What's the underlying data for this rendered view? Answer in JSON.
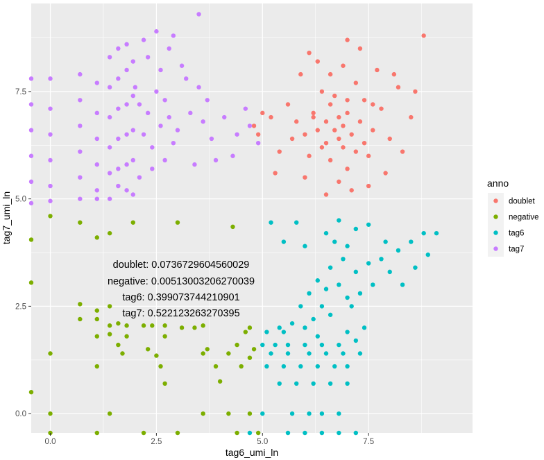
{
  "chart_data": {
    "type": "scatter",
    "title": "",
    "xlabel": "tag6_umi_ln",
    "ylabel": "tag7_umi_ln",
    "xlim": [
      -0.45,
      9.95
    ],
    "ylim": [
      -0.45,
      9.55
    ],
    "x_ticks": [
      0.0,
      2.5,
      5.0,
      7.5
    ],
    "x_tick_labels": [
      "0.0",
      "2.5",
      "5.0",
      "7.5"
    ],
    "y_ticks": [
      0.0,
      2.5,
      5.0,
      7.5
    ],
    "y_tick_labels": [
      "0.0",
      "2.5",
      "5.0",
      "7.5"
    ],
    "legend": {
      "title": "anno",
      "position": "right",
      "entries": [
        "doublet",
        "negative",
        "tag6",
        "tag7"
      ]
    },
    "annotation_lines": [
      "doublet: 0.0736729604560029",
      "negative: 0.00513003206270039",
      "tag6: 0.399073744210901",
      "tag7: 0.522123263270395"
    ],
    "series": [
      {
        "name": "doublet",
        "color": "#F8766D",
        "points": [
          [
            6.3,
            6.6
          ],
          [
            6.8,
            6.9
          ],
          [
            7.1,
            6.5
          ],
          [
            6.6,
            7.2
          ],
          [
            7.0,
            7.0
          ],
          [
            6.5,
            6.3
          ],
          [
            7.3,
            6.8
          ],
          [
            6.9,
            6.2
          ],
          [
            6.2,
            7.0
          ],
          [
            7.4,
            7.3
          ],
          [
            6.7,
            6.6
          ],
          [
            6.0,
            6.5
          ],
          [
            7.6,
            6.6
          ],
          [
            6.4,
            7.5
          ],
          [
            7.2,
            7.7
          ],
          [
            5.8,
            6.8
          ],
          [
            7.8,
            7.1
          ],
          [
            6.6,
            5.9
          ],
          [
            7.0,
            5.7
          ],
          [
            6.1,
            6.0
          ],
          [
            8.0,
            6.4
          ],
          [
            5.6,
            7.2
          ],
          [
            7.5,
            6.0
          ],
          [
            6.9,
            8.1
          ],
          [
            6.3,
            8.2
          ],
          [
            7.3,
            8.5
          ],
          [
            8.2,
            7.6
          ],
          [
            5.4,
            6.1
          ],
          [
            8.5,
            6.9
          ],
          [
            6.8,
            5.4
          ],
          [
            7.1,
            5.2
          ],
          [
            6.5,
            5.1
          ],
          [
            5.2,
            6.9
          ],
          [
            4.9,
            6.5
          ],
          [
            5.0,
            7.0
          ],
          [
            4.8,
            6.7
          ],
          [
            5.3,
            5.6
          ],
          [
            8.6,
            7.5
          ],
          [
            8.8,
            8.8
          ],
          [
            7.0,
            8.7
          ],
          [
            6.1,
            8.4
          ],
          [
            7.7,
            8.0
          ],
          [
            5.9,
            7.9
          ],
          [
            8.3,
            6.1
          ],
          [
            7.9,
            5.6
          ],
          [
            6.0,
            5.5
          ],
          [
            6.6,
            7.9
          ],
          [
            7.4,
            6.3
          ],
          [
            6.2,
            6.9
          ],
          [
            6.7,
            7.4
          ],
          [
            7.2,
            6.1
          ],
          [
            6.4,
            6.2
          ],
          [
            7.6,
            7.2
          ],
          [
            5.7,
            6.4
          ],
          [
            8.1,
            7.9
          ],
          [
            7.5,
            5.3
          ],
          [
            6.8,
            6.4
          ],
          [
            7.0,
            7.3
          ],
          [
            6.5,
            6.8
          ],
          [
            6.9,
            6.7
          ]
        ]
      },
      {
        "name": "negative",
        "color": "#7CAE00",
        "points": [
          [
            0.0,
            4.6
          ],
          [
            0.7,
            4.45
          ],
          [
            1.1,
            4.1
          ],
          [
            1.4,
            4.2
          ],
          [
            1.95,
            4.45
          ],
          [
            3.0,
            4.45
          ],
          [
            4.3,
            4.35
          ],
          [
            -0.45,
            4.05
          ],
          [
            -0.45,
            3.05
          ],
          [
            0.7,
            2.55
          ],
          [
            1.1,
            2.4
          ],
          [
            1.4,
            2.5
          ],
          [
            0.7,
            2.2
          ],
          [
            1.1,
            2.2
          ],
          [
            1.4,
            2.05
          ],
          [
            1.6,
            2.1
          ],
          [
            1.8,
            2.05
          ],
          [
            2.2,
            2.05
          ],
          [
            2.4,
            2.05
          ],
          [
            2.7,
            2.05
          ],
          [
            3.1,
            2.0
          ],
          [
            3.4,
            2.0
          ],
          [
            3.6,
            2.05
          ],
          [
            4.7,
            2.0
          ],
          [
            1.1,
            1.8
          ],
          [
            1.4,
            1.85
          ],
          [
            1.8,
            1.8
          ],
          [
            2.7,
            1.8
          ],
          [
            4.6,
            1.9
          ],
          [
            1.6,
            1.6
          ],
          [
            2.3,
            1.5
          ],
          [
            3.7,
            1.5
          ],
          [
            4.4,
            1.6
          ],
          [
            4.8,
            1.5
          ],
          [
            0.0,
            1.4
          ],
          [
            1.7,
            1.4
          ],
          [
            2.5,
            1.35
          ],
          [
            3.6,
            1.4
          ],
          [
            4.2,
            1.4
          ],
          [
            4.7,
            1.3
          ],
          [
            1.1,
            1.1
          ],
          [
            2.6,
            1.1
          ],
          [
            3.9,
            1.1
          ],
          [
            4.5,
            1.1
          ],
          [
            2.7,
            0.7
          ],
          [
            4.0,
            0.75
          ],
          [
            -0.45,
            0.5
          ],
          [
            0.0,
            0.0
          ],
          [
            1.4,
            0.0
          ],
          [
            3.6,
            0.0
          ],
          [
            4.2,
            0.0
          ],
          [
            4.7,
            0.0
          ],
          [
            1.1,
            -0.45
          ],
          [
            2.2,
            -0.45
          ],
          [
            3.0,
            -0.45
          ],
          [
            4.4,
            -0.45
          ],
          [
            0.0,
            -0.45
          ],
          [
            4.9,
            -0.45
          ]
        ]
      },
      {
        "name": "tag6",
        "color": "#00BFC4",
        "points": [
          [
            6.8,
            3.0
          ],
          [
            7.2,
            3.3
          ],
          [
            6.5,
            2.9
          ],
          [
            7.5,
            3.5
          ],
          [
            7.0,
            2.7
          ],
          [
            6.3,
            3.1
          ],
          [
            7.8,
            3.6
          ],
          [
            8.2,
            3.8
          ],
          [
            6.9,
            3.6
          ],
          [
            7.6,
            3.0
          ],
          [
            6.6,
            3.4
          ],
          [
            7.3,
            2.8
          ],
          [
            8.5,
            4.0
          ],
          [
            8.8,
            4.2
          ],
          [
            9.1,
            4.2
          ],
          [
            8.0,
            3.3
          ],
          [
            6.1,
            2.8
          ],
          [
            5.9,
            2.5
          ],
          [
            6.4,
            2.5
          ],
          [
            7.0,
            3.9
          ],
          [
            6.7,
            4.0
          ],
          [
            7.2,
            4.3
          ],
          [
            6.8,
            4.5
          ],
          [
            7.5,
            4.4
          ],
          [
            6.5,
            4.2
          ],
          [
            5.5,
            4.0
          ],
          [
            6.0,
            3.9
          ],
          [
            5.2,
            4.45
          ],
          [
            5.8,
            4.45
          ],
          [
            7.9,
            4.0
          ],
          [
            8.6,
            3.4
          ],
          [
            8.3,
            3.0
          ],
          [
            8.9,
            3.7
          ],
          [
            7.1,
            2.5
          ],
          [
            6.6,
            2.3
          ],
          [
            6.2,
            2.2
          ],
          [
            5.7,
            2.1
          ],
          [
            5.4,
            2.0
          ],
          [
            6.0,
            2.0
          ],
          [
            5.1,
            1.9
          ],
          [
            5.5,
            1.9
          ],
          [
            6.3,
            1.8
          ],
          [
            7.0,
            1.9
          ],
          [
            7.4,
            2.0
          ],
          [
            5.0,
            1.6
          ],
          [
            5.3,
            1.6
          ],
          [
            5.6,
            1.6
          ],
          [
            6.0,
            1.6
          ],
          [
            6.4,
            1.6
          ],
          [
            6.8,
            1.6
          ],
          [
            7.2,
            1.7
          ],
          [
            5.2,
            1.4
          ],
          [
            5.6,
            1.4
          ],
          [
            6.1,
            1.4
          ],
          [
            6.5,
            1.4
          ],
          [
            6.9,
            1.4
          ],
          [
            7.3,
            1.4
          ],
          [
            5.1,
            1.1
          ],
          [
            5.5,
            1.1
          ],
          [
            5.9,
            1.1
          ],
          [
            6.3,
            1.1
          ],
          [
            6.7,
            1.1
          ],
          [
            7.0,
            1.1
          ],
          [
            5.4,
            0.7
          ],
          [
            5.8,
            0.7
          ],
          [
            6.2,
            0.7
          ],
          [
            6.6,
            0.7
          ],
          [
            7.0,
            0.7
          ],
          [
            5.7,
            0.0
          ],
          [
            6.1,
            0.0
          ],
          [
            6.4,
            0.0
          ],
          [
            6.8,
            0.0
          ],
          [
            5.0,
            0.0
          ],
          [
            5.6,
            -0.45
          ],
          [
            6.0,
            -0.45
          ],
          [
            6.4,
            -0.45
          ],
          [
            6.8,
            -0.45
          ],
          [
            7.2,
            -0.45
          ],
          [
            4.7,
            -0.45
          ]
        ]
      },
      {
        "name": "tag7",
        "color": "#C77CFF",
        "points": [
          [
            2.3,
            7.0
          ],
          [
            2.6,
            6.7
          ],
          [
            2.1,
            7.2
          ],
          [
            2.8,
            6.9
          ],
          [
            2.5,
            7.5
          ],
          [
            3.0,
            6.6
          ],
          [
            2.2,
            6.5
          ],
          [
            2.7,
            7.3
          ],
          [
            3.3,
            7.0
          ],
          [
            2.4,
            6.2
          ],
          [
            3.6,
            6.8
          ],
          [
            2.0,
            7.6
          ],
          [
            2.9,
            6.3
          ],
          [
            3.8,
            6.4
          ],
          [
            4.1,
            6.9
          ],
          [
            4.4,
            6.5
          ],
          [
            4.7,
            6.7
          ],
          [
            4.9,
            6.3
          ],
          [
            3.2,
            7.8
          ],
          [
            2.6,
            8.0
          ],
          [
            2.3,
            8.3
          ],
          [
            3.5,
            7.6
          ],
          [
            2.8,
            8.5
          ],
          [
            3.1,
            8.1
          ],
          [
            3.5,
            9.3
          ],
          [
            2.5,
            8.9
          ],
          [
            2.9,
            8.8
          ],
          [
            2.2,
            8.7
          ],
          [
            1.8,
            8.6
          ],
          [
            3.9,
            5.9
          ],
          [
            3.4,
            5.8
          ],
          [
            2.7,
            5.9
          ],
          [
            2.4,
            5.7
          ],
          [
            2.1,
            5.5
          ],
          [
            1.6,
            5.3
          ],
          [
            4.3,
            6.0
          ],
          [
            4.6,
            7.1
          ],
          [
            3.7,
            7.3
          ],
          [
            -0.45,
            7.8
          ],
          [
            -0.45,
            7.2
          ],
          [
            -0.45,
            6.6
          ],
          [
            -0.45,
            6.0
          ],
          [
            -0.45,
            5.4
          ],
          [
            -0.45,
            4.9
          ],
          [
            0.0,
            7.8
          ],
          [
            0.0,
            7.1
          ],
          [
            0.0,
            6.5
          ],
          [
            0.0,
            5.9
          ],
          [
            0.0,
            5.3
          ],
          [
            0.0,
            4.95
          ],
          [
            0.7,
            7.9
          ],
          [
            0.7,
            7.3
          ],
          [
            0.7,
            6.7
          ],
          [
            0.7,
            6.1
          ],
          [
            0.7,
            5.5
          ],
          [
            0.7,
            5.0
          ],
          [
            1.1,
            7.7
          ],
          [
            1.1,
            7.0
          ],
          [
            1.1,
            6.4
          ],
          [
            1.1,
            5.8
          ],
          [
            1.1,
            5.2
          ],
          [
            1.1,
            5.0
          ],
          [
            1.4,
            8.3
          ],
          [
            1.4,
            7.6
          ],
          [
            1.4,
            6.9
          ],
          [
            1.4,
            6.2
          ],
          [
            1.4,
            5.6
          ],
          [
            1.4,
            5.0
          ],
          [
            1.6,
            8.5
          ],
          [
            1.6,
            7.8
          ],
          [
            1.6,
            7.1
          ],
          [
            1.6,
            6.4
          ],
          [
            1.6,
            5.7
          ],
          [
            1.8,
            8.0
          ],
          [
            1.8,
            7.2
          ],
          [
            1.8,
            6.5
          ],
          [
            1.8,
            5.8
          ],
          [
            1.8,
            5.2
          ],
          [
            1.95,
            8.2
          ],
          [
            1.95,
            7.4
          ],
          [
            1.95,
            6.6
          ],
          [
            1.95,
            5.9
          ],
          [
            1.95,
            5.1
          ]
        ]
      }
    ]
  }
}
